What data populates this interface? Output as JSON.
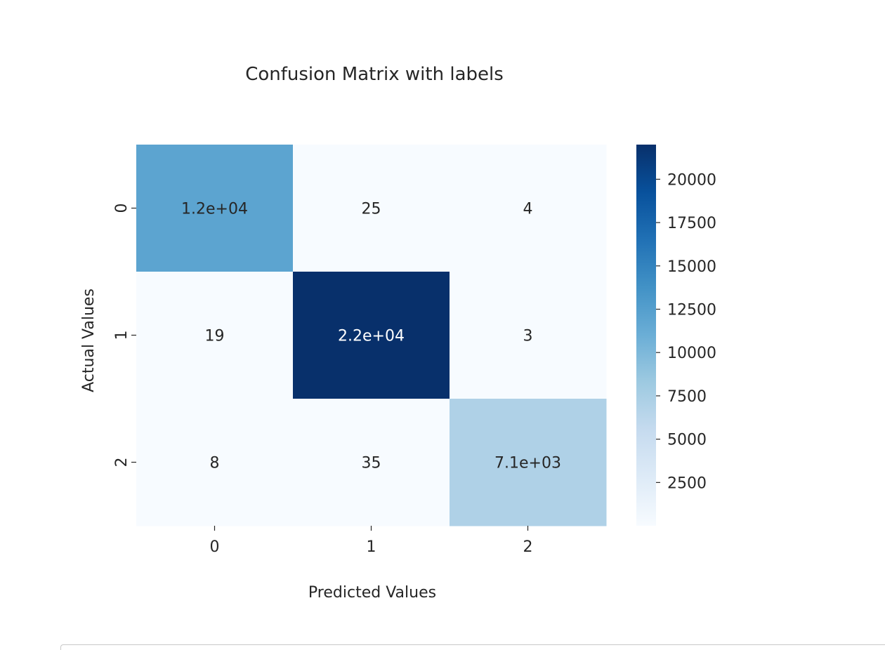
{
  "chart_data": {
    "type": "heatmap",
    "title": "Confusion Matrix with labels",
    "xlabel": "Predicted Values",
    "ylabel": "Actual Values",
    "x_categories": [
      "0",
      "1",
      "2"
    ],
    "y_categories": [
      "0",
      "1",
      "2"
    ],
    "values": [
      [
        12000,
        25,
        4
      ],
      [
        19,
        22000,
        3
      ],
      [
        8,
        35,
        7100
      ]
    ],
    "annotations": [
      [
        "1.2e+04",
        "25",
        "4"
      ],
      [
        "19",
        "2.2e+04",
        "3"
      ],
      [
        "8",
        "35",
        "7.1e+03"
      ]
    ],
    "colormap": "Blues",
    "colorbar": {
      "range": [
        3,
        22000
      ],
      "ticks": [
        2500,
        5000,
        7500,
        10000,
        12500,
        15000,
        17500,
        20000
      ]
    }
  }
}
